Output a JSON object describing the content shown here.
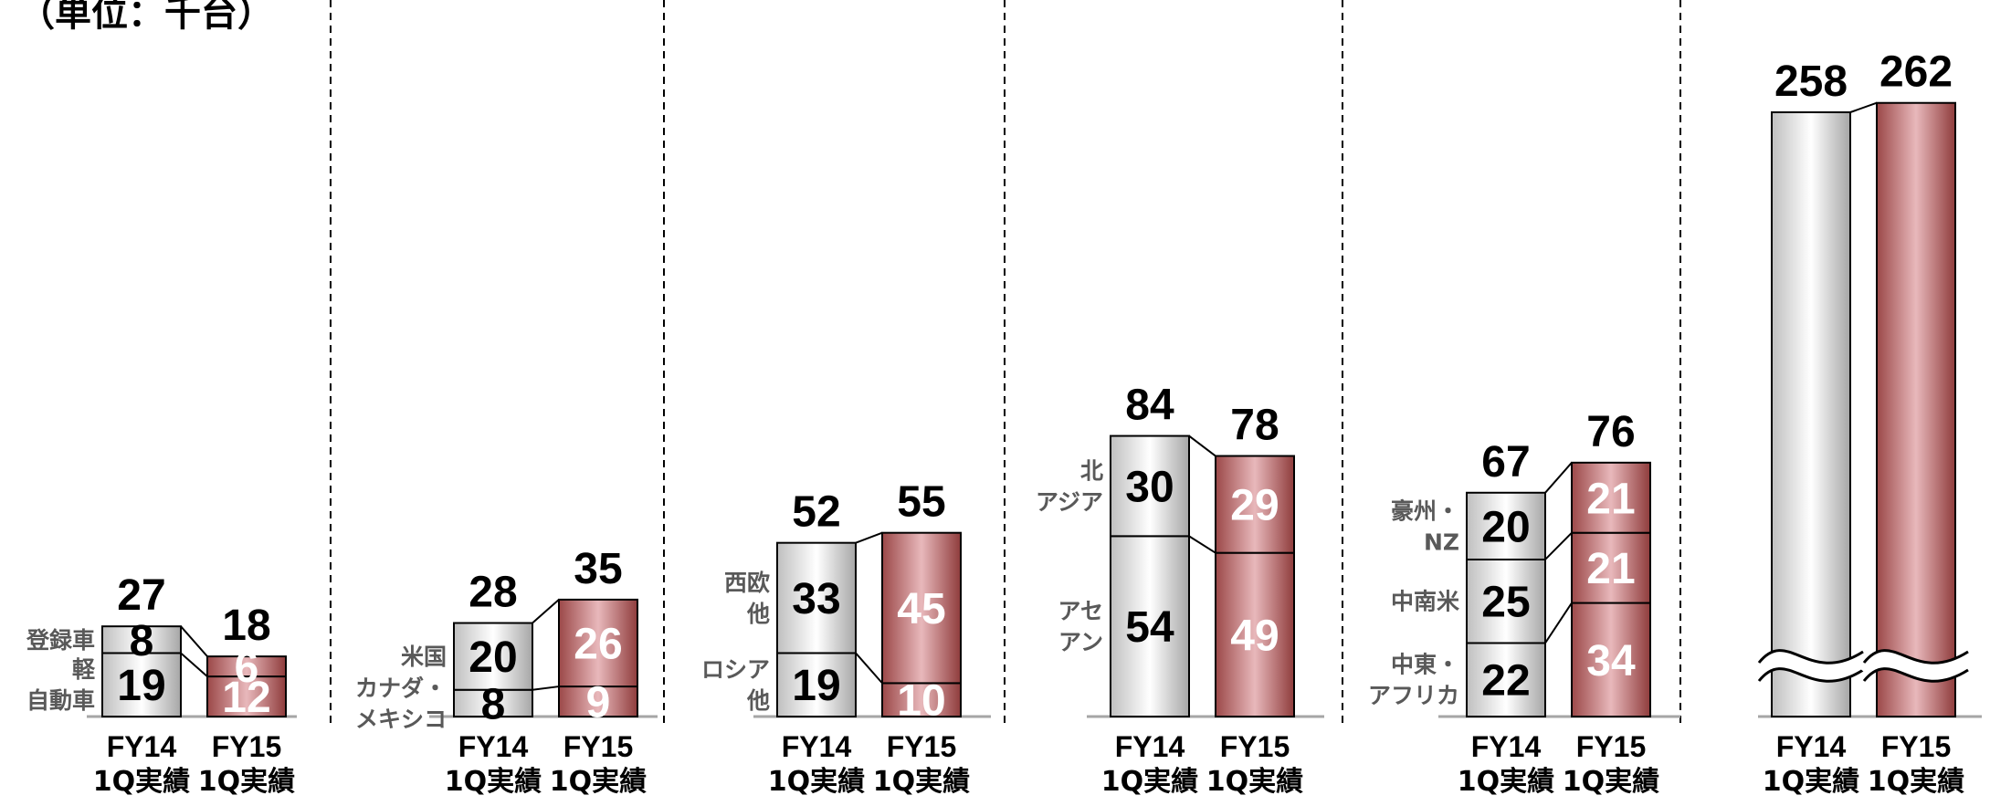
{
  "unit_label": "（単位：千台）",
  "colors": {
    "fy14_bar": "#d9d9d9",
    "fy15_bar": "#c98f8f",
    "divider": "#000000",
    "axis": "#a6a6a6"
  },
  "chart_data": {
    "type": "bar",
    "stacked": true,
    "unit": "千台",
    "bar_labels": [
      {
        "line1": "FY14",
        "line2": "1Q実績"
      },
      {
        "line1": "FY15",
        "line2": "1Q実績"
      }
    ],
    "groups": [
      {
        "totals": [
          27,
          18
        ],
        "segments": [
          {
            "lines": [
              "軽",
              "自動車"
            ],
            "values": [
              19,
              12
            ]
          },
          {
            "lines": [
              "登録車"
            ],
            "values": [
              8,
              6
            ]
          }
        ]
      },
      {
        "totals": [
          28,
          35
        ],
        "segments": [
          {
            "lines": [
              "カナダ・",
              "メキシコ"
            ],
            "values": [
              8,
              9
            ]
          },
          {
            "lines": [
              "米国"
            ],
            "values": [
              20,
              26
            ]
          }
        ]
      },
      {
        "totals": [
          52,
          55
        ],
        "segments": [
          {
            "lines": [
              "ロシア",
              "他"
            ],
            "values": [
              19,
              10
            ]
          },
          {
            "lines": [
              "西欧",
              "他"
            ],
            "values": [
              33,
              45
            ]
          }
        ]
      },
      {
        "totals": [
          84,
          78
        ],
        "segments": [
          {
            "lines": [
              "アセ",
              "アン"
            ],
            "values": [
              54,
              49
            ]
          },
          {
            "lines": [
              "北",
              "アジア"
            ],
            "values": [
              30,
              29
            ]
          }
        ]
      },
      {
        "totals": [
          67,
          76
        ],
        "segments": [
          {
            "lines": [
              "中東・",
              "アフリカ"
            ],
            "values": [
              22,
              34
            ]
          },
          {
            "lines": [
              "中南米"
            ],
            "values": [
              25,
              21
            ]
          },
          {
            "lines": [
              "豪州・",
              "NZ"
            ],
            "values": [
              20,
              21
            ]
          }
        ]
      },
      {
        "totals": [
          258,
          262
        ],
        "axis_break": true,
        "segments": []
      }
    ]
  }
}
